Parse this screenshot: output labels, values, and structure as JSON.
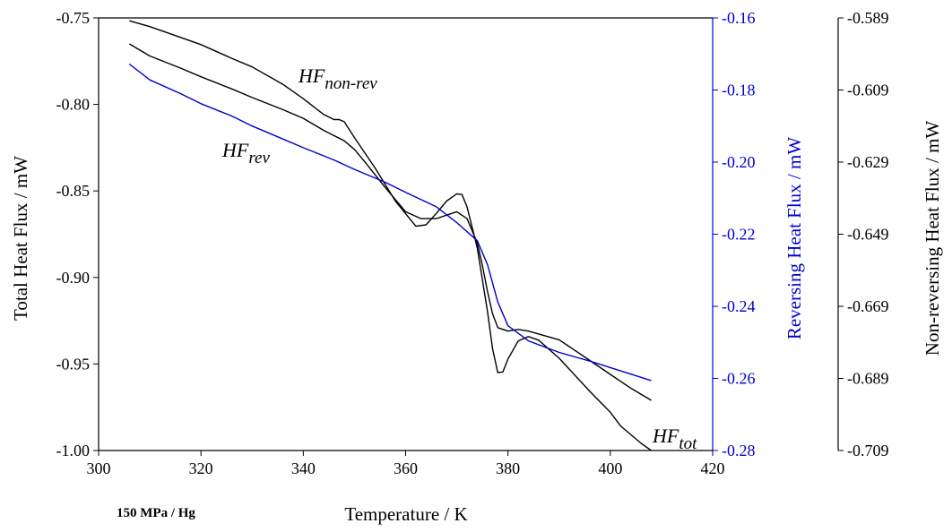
{
  "chart_data": {
    "type": "line",
    "xlabel": "Temperature / K",
    "xlim": [
      300,
      420
    ],
    "xticks": [
      "300",
      "320",
      "340",
      "360",
      "380",
      "400",
      "420"
    ],
    "annotation": "150 MPa / Hg",
    "axes": {
      "left": {
        "label": "Total Heat Flux / mW",
        "ylim": [
          -1.0,
          -0.75
        ],
        "ticks": [
          "-1.00",
          "-0.95",
          "-0.90",
          "-0.85",
          "-0.80",
          "-0.75"
        ],
        "color": "#000000"
      },
      "right_inner": {
        "label": "Reversing Heat Flux / mW",
        "ylim": [
          -0.28,
          -0.16
        ],
        "ticks": [
          "-0.28",
          "-0.26",
          "-0.24",
          "-0.22",
          "-0.20",
          "-0.18",
          "-0.16"
        ],
        "color": "#0000cc"
      },
      "right_outer": {
        "label": "Non-reversing Heat Flux / mW",
        "ylim": [
          -0.709,
          -0.589
        ],
        "ticks": [
          "-0.709",
          "-0.689",
          "-0.669",
          "-0.649",
          "-0.629",
          "-0.609",
          "-0.589"
        ],
        "color": "#000000"
      }
    },
    "series": [
      {
        "name_main": "HF",
        "name_sub": "tot",
        "axis": "left",
        "color": "#000000",
        "x": [
          306,
          310,
          316,
          320,
          326,
          330,
          336,
          340,
          344,
          348,
          350,
          352,
          356,
          360,
          363,
          366,
          368,
          370,
          372,
          374,
          375,
          376,
          377,
          378,
          380,
          382,
          384,
          390,
          396,
          400,
          404,
          408
        ],
        "y": [
          -0.765,
          -0.772,
          -0.779,
          -0.784,
          -0.791,
          -0.796,
          -0.803,
          -0.808,
          -0.815,
          -0.821,
          -0.826,
          -0.833,
          -0.848,
          -0.862,
          -0.866,
          -0.866,
          -0.864,
          -0.862,
          -0.866,
          -0.88,
          -0.893,
          -0.908,
          -0.921,
          -0.929,
          -0.931,
          -0.93,
          -0.931,
          -0.936,
          -0.948,
          -0.956,
          -0.964,
          -0.971
        ]
      },
      {
        "name_main": "HF",
        "name_sub": "non-rev",
        "axis": "right_outer",
        "color": "#000000",
        "x": [
          306,
          310,
          314,
          320,
          326,
          330,
          336,
          340,
          344,
          346,
          347,
          348,
          350,
          354,
          358,
          362,
          364,
          366,
          368,
          370,
          371,
          372,
          374,
          376,
          377,
          378,
          379,
          380,
          382,
          384,
          386,
          390,
          396,
          400,
          402,
          406,
          408
        ],
        "y": [
          -0.5898,
          -0.5914,
          -0.5934,
          -0.5964,
          -0.6002,
          -0.6026,
          -0.6074,
          -0.6114,
          -0.6158,
          -0.6172,
          -0.6172,
          -0.6178,
          -0.6222,
          -0.6306,
          -0.6398,
          -0.6468,
          -0.6464,
          -0.6432,
          -0.6398,
          -0.6378,
          -0.638,
          -0.6414,
          -0.6528,
          -0.6704,
          -0.6808,
          -0.6874,
          -0.6872,
          -0.6836,
          -0.6786,
          -0.6774,
          -0.6784,
          -0.6834,
          -0.6926,
          -0.6984,
          -0.7022,
          -0.707,
          -0.709
        ]
      },
      {
        "name_main": "HF",
        "name_sub": "rev",
        "axis": "right_inner",
        "color": "#0000cc",
        "x": [
          306,
          310,
          316,
          320,
          326,
          330,
          336,
          340,
          346,
          350,
          356,
          360,
          366,
          370,
          374,
          376,
          378,
          380,
          384,
          390,
          396,
          400,
          404,
          408
        ],
        "y": [
          -0.1728,
          -0.1772,
          -0.181,
          -0.1838,
          -0.1872,
          -0.19,
          -0.1936,
          -0.196,
          -0.1994,
          -0.202,
          -0.2056,
          -0.2084,
          -0.2124,
          -0.2168,
          -0.2218,
          -0.2284,
          -0.2388,
          -0.2454,
          -0.2496,
          -0.2528,
          -0.2552,
          -0.257,
          -0.2588,
          -0.2606
        ]
      }
    ]
  }
}
